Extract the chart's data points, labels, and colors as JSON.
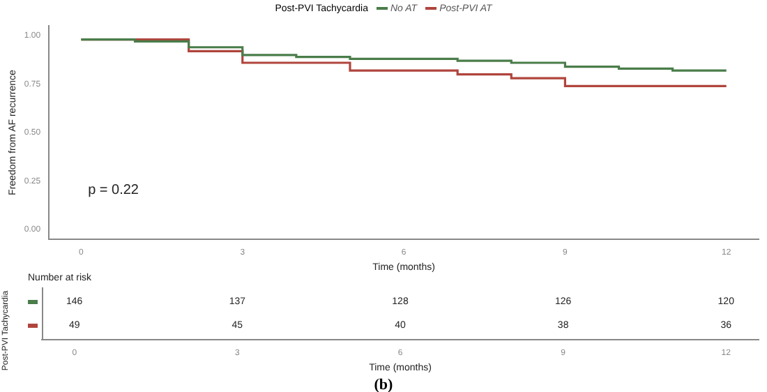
{
  "chart_data": [
    {
      "type": "step",
      "legend_title": "Post-PVI Tachycardia",
      "legend": "top",
      "xlabel": "Time (months)",
      "ylabel": "Freedom from AF recurrence",
      "annotations": [
        "p = 0.22"
      ],
      "xlim": [
        -0.6,
        12.6
      ],
      "ylim": [
        -0.05,
        1.05
      ],
      "xticks": [
        0,
        3,
        6,
        9,
        12
      ],
      "yticks": [
        {
          "value": 0,
          "label": "0.00"
        },
        {
          "value": 0.25,
          "label": "0.25"
        },
        {
          "value": 0.5,
          "label": "0.50"
        },
        {
          "value": 0.75,
          "label": "0.75"
        },
        {
          "value": 1,
          "label": "1.00"
        }
      ],
      "grid": false,
      "series": [
        {
          "name": "No AT",
          "color": "#4a7d4a",
          "x": [
            0,
            1,
            2,
            3,
            4,
            5,
            7,
            8,
            9,
            10,
            11,
            12
          ],
          "values": [
            0.98,
            0.97,
            0.94,
            0.9,
            0.89,
            0.88,
            0.87,
            0.86,
            0.84,
            0.83,
            0.82,
            0.82
          ]
        },
        {
          "name": "Post-PVI AT",
          "color": "#b0453d",
          "x": [
            0,
            2,
            3,
            5,
            7,
            8,
            9,
            12
          ],
          "values": [
            0.98,
            0.92,
            0.86,
            0.82,
            0.8,
            0.78,
            0.74,
            0.74
          ]
        }
      ]
    },
    {
      "type": "heatmap",
      "title": "Number at risk",
      "ylabel": "Post-PVI Tachycardia",
      "xlabel": "Time (months)",
      "annotations": [
        "(b)"
      ],
      "categories": [
        "0",
        "3",
        "6",
        "9",
        "12"
      ],
      "y_categories": [
        null,
        null
      ],
      "data_labels": true,
      "cells": [
        [
          146,
          137,
          128,
          126,
          120
        ],
        [
          49,
          45,
          40,
          38,
          36
        ]
      ]
    }
  ]
}
